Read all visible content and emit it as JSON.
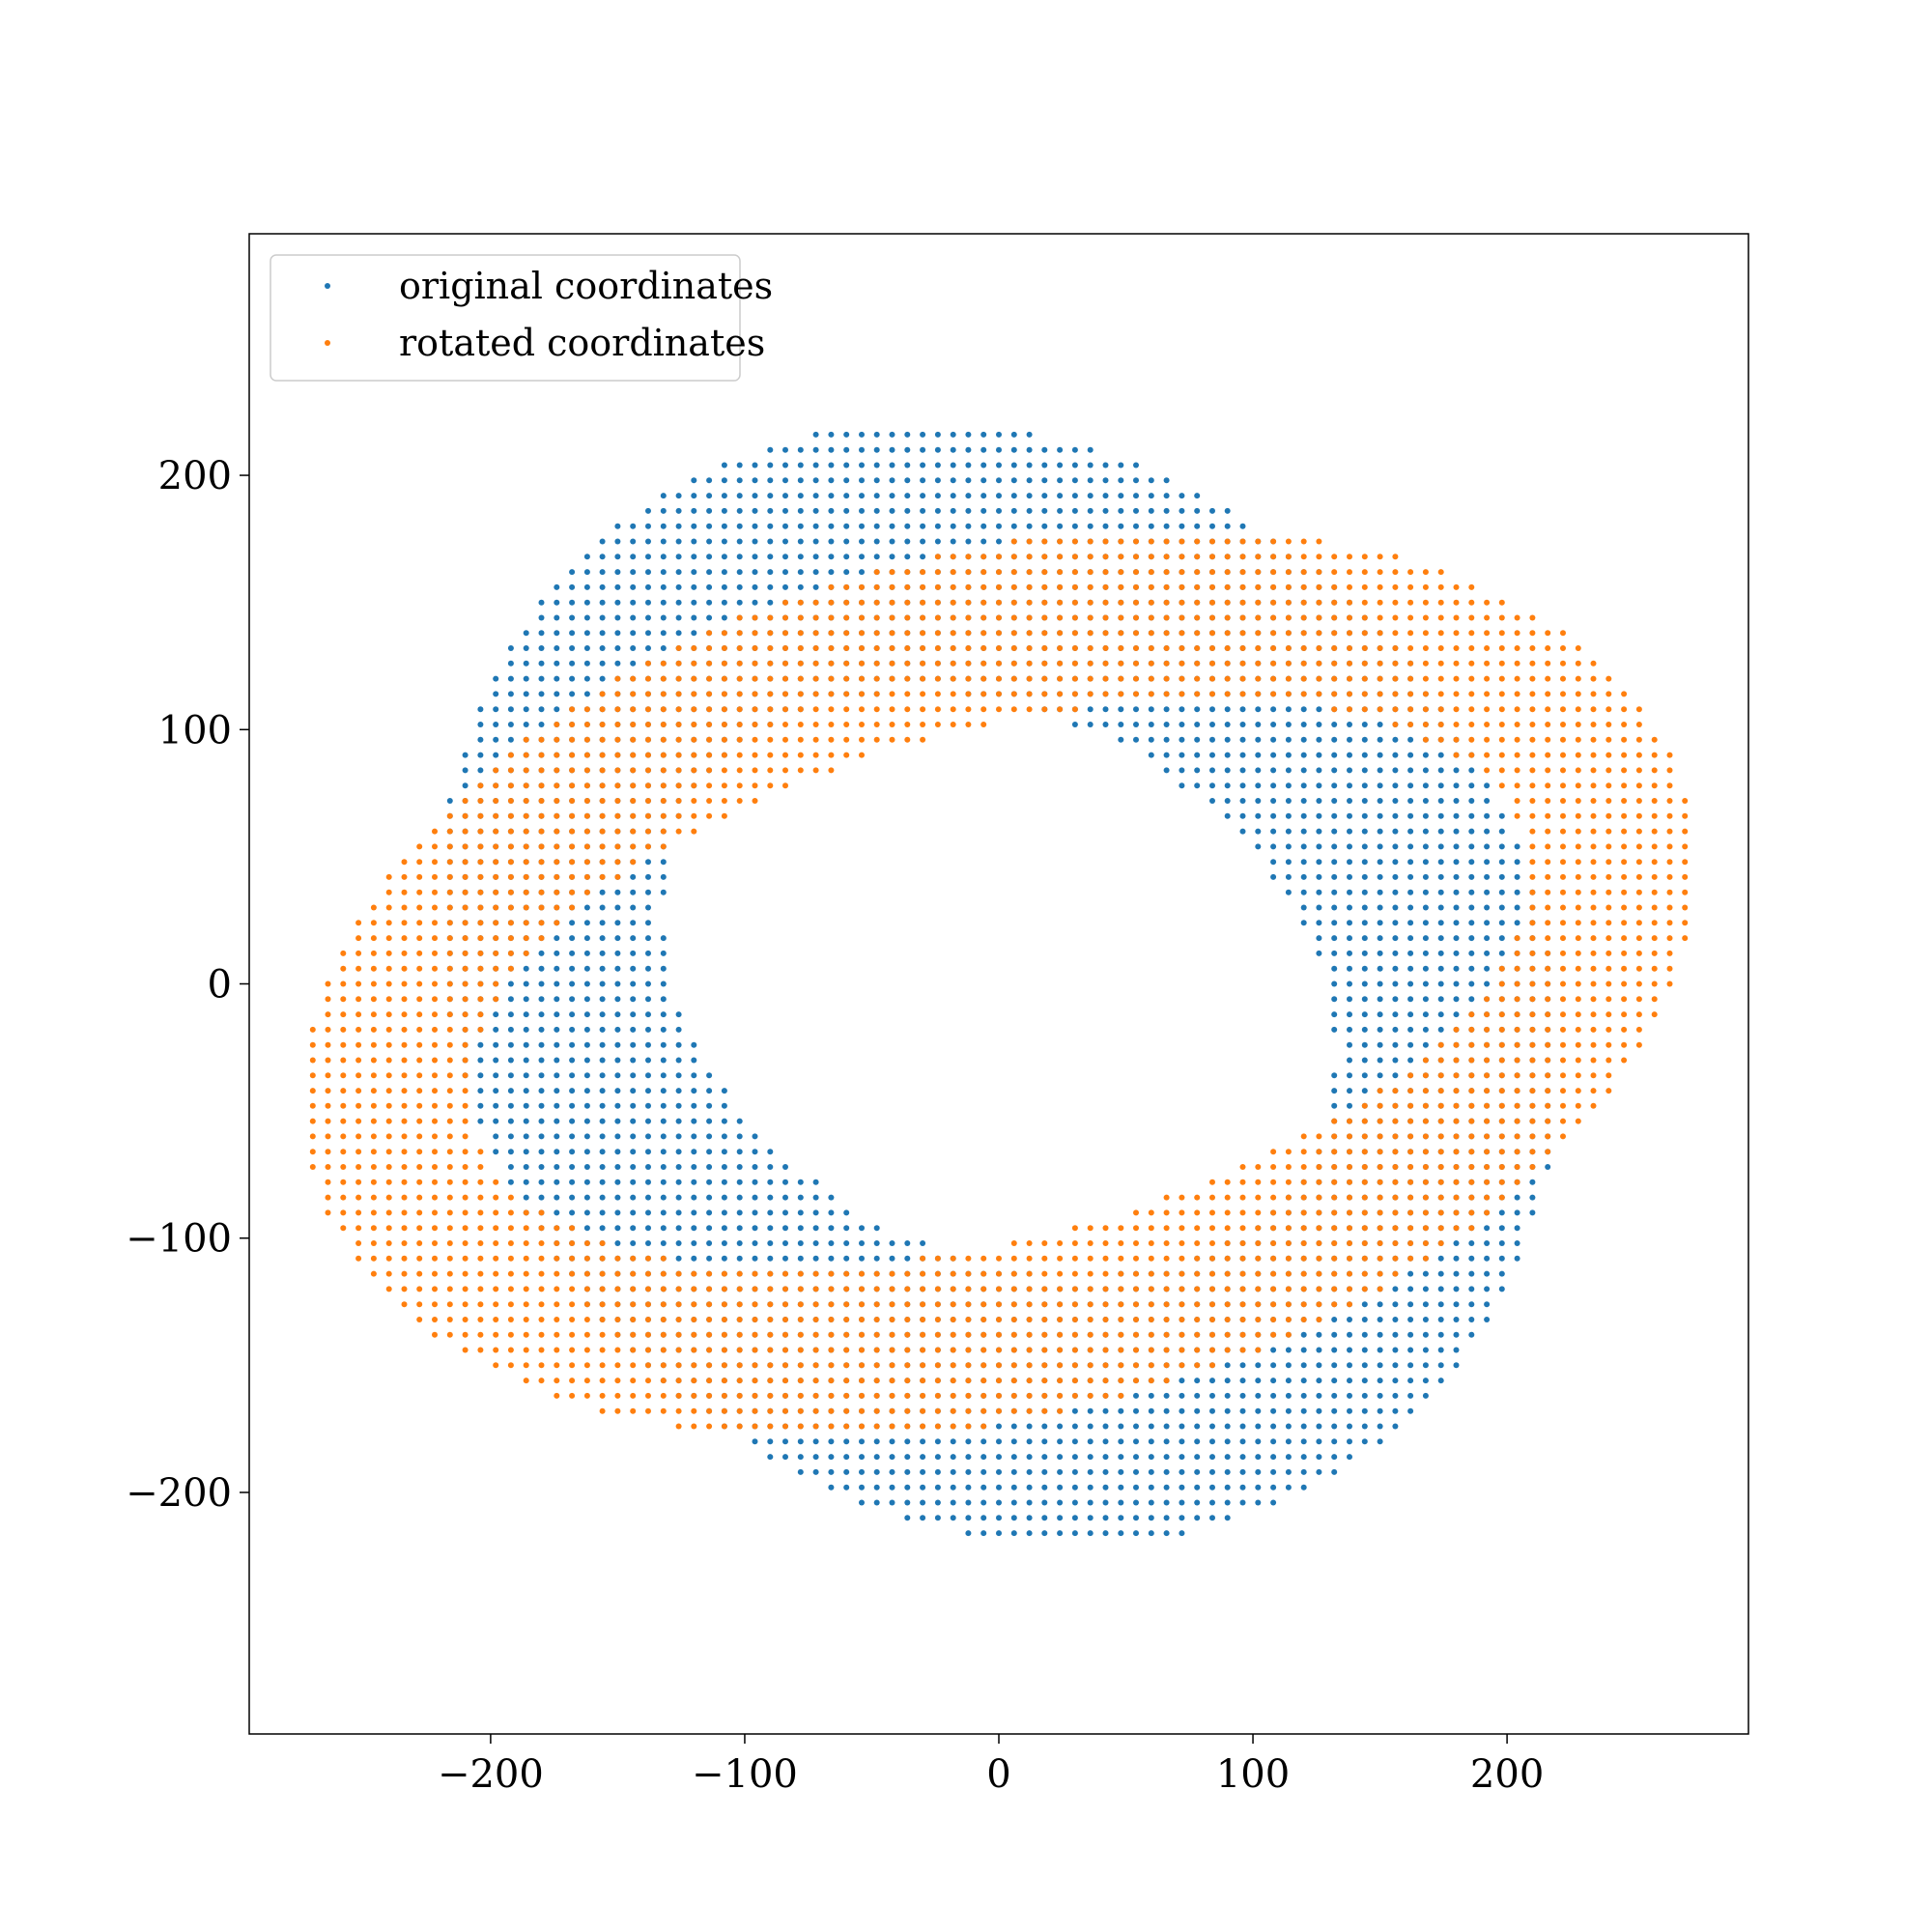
{
  "chart_data": {
    "type": "scatter",
    "title": "",
    "xlabel": "",
    "ylabel": "",
    "xlim": [
      -295,
      295
    ],
    "ylim": [
      -295,
      295
    ],
    "grid": false,
    "legend_position": "top-left",
    "x_ticks": [
      -200,
      -100,
      0,
      100,
      200
    ],
    "y_ticks": [
      -200,
      -100,
      0,
      100,
      200
    ],
    "x_tick_labels": [
      "−200",
      "−100",
      "0",
      "100",
      "200"
    ],
    "y_tick_labels": [
      "−200",
      "−100",
      "0",
      "100",
      "200"
    ],
    "grid_spacing": 6,
    "series": [
      {
        "name": "original coordinates",
        "color": "#1f77b4",
        "shape": "ring",
        "center": [
          0,
          0
        ],
        "outer_radii": [
          205,
          235
        ],
        "inner_radii": [
          105,
          140
        ],
        "outer_angle_deg": 45,
        "inner_angle_deg": 60
      },
      {
        "name": "rotated coordinates",
        "color": "#ff7f0e",
        "shape": "ring",
        "center": [
          0,
          0
        ],
        "outer_radii": [
          280,
          170
        ],
        "inner_radii": [
          215,
          100
        ],
        "outer_angle_deg": 15,
        "inner_angle_deg": 15
      }
    ]
  }
}
